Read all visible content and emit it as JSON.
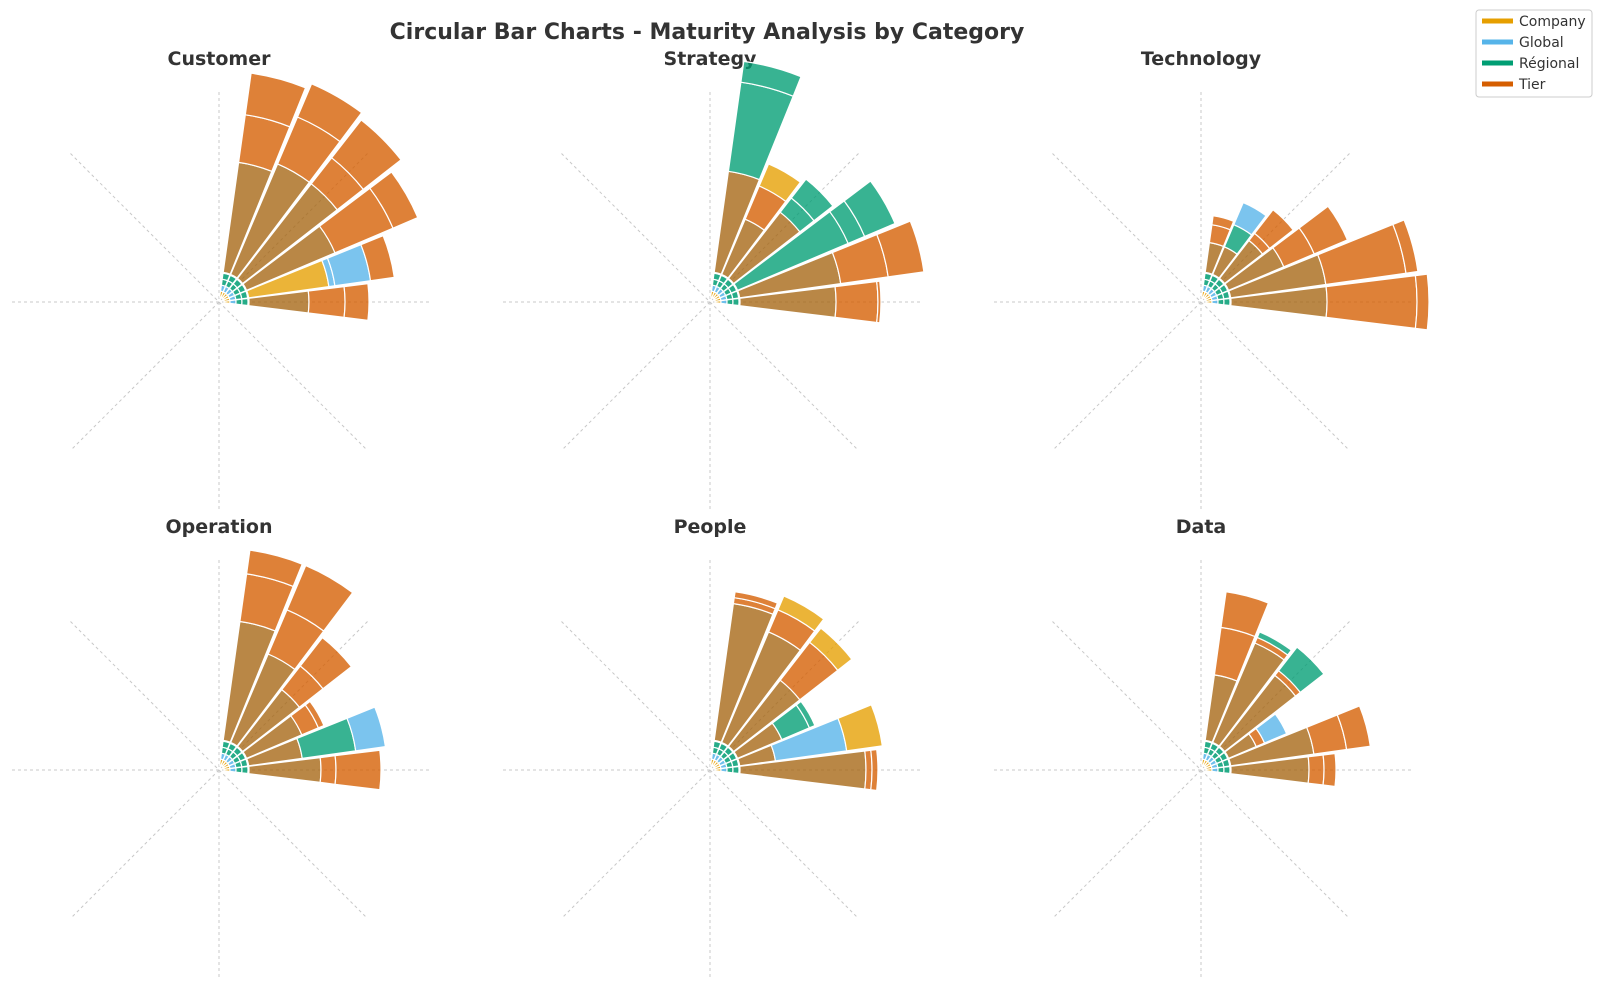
{
  "title": "Circular Bar Charts - Maturity Analysis by Category",
  "legend": [
    {
      "label": "Company",
      "color": "#E69F00"
    },
    {
      "label": "Global",
      "color": "#56B4E9"
    },
    {
      "label": "Régional",
      "color": "#009E73"
    },
    {
      "label": "Tier",
      "color": "#D55E00"
    }
  ],
  "chart_data": [
    {
      "type": "circular-bar",
      "title": "Customer",
      "groups": [
        "Company",
        "Global",
        "Régional",
        "Tier"
      ],
      "bars": [
        {
          "angle": 0,
          "segments": [
            [
              "Tier",
              100
            ],
            [
              "Tier",
              60
            ],
            [
              "Tier",
              40
            ]
          ]
        },
        {
          "angle": 15,
          "segments": [
            [
              "Company",
              135
            ],
            [
              "Global",
              10
            ],
            [
              "Global",
              60
            ],
            [
              "Tier",
              40
            ]
          ]
        },
        {
          "angle": 30,
          "segments": [
            [
              "Tier",
              160
            ],
            [
              "Tier",
              105
            ],
            [
              "Tier",
              45
            ]
          ]
        },
        {
          "angle": 45,
          "segments": [
            [
              "Tier",
              200
            ],
            [
              "Tier",
              55
            ],
            [
              "Tier",
              80
            ]
          ]
        },
        {
          "angle": 60,
          "segments": [
            [
              "Tier",
              200
            ],
            [
              "Tier",
              85
            ],
            [
              "Tier",
              60
            ]
          ]
        },
        {
          "angle": 75,
          "segments": [
            [
              "Tier",
              185
            ],
            [
              "Tier",
              80
            ],
            [
              "Tier",
              70
            ]
          ]
        }
      ]
    },
    {
      "type": "circular-bar",
      "title": "Strategy",
      "groups": [
        "Company",
        "Global",
        "Régional",
        "Tier"
      ],
      "bars": [
        {
          "angle": 0,
          "segments": [
            [
              "Tier",
              160
            ],
            [
              "Tier",
              70
            ],
            [
              "Tier",
              5
            ]
          ]
        },
        {
          "angle": 15,
          "segments": [
            [
              "Tier",
              170
            ],
            [
              "Tier",
              80
            ],
            [
              "Tier",
              60
            ]
          ]
        },
        {
          "angle": 30,
          "segments": [
            [
              "Régional",
              200
            ],
            [
              "Régional",
              30
            ],
            [
              "Régional",
              55
            ]
          ]
        },
        {
          "angle": 45,
          "segments": [
            [
              "Tier",
              140
            ],
            [
              "Régional",
              30
            ],
            [
              "Régional",
              40
            ]
          ]
        },
        {
          "angle": 60,
          "segments": [
            [
              "Tier",
              100
            ],
            [
              "Tier",
              60
            ],
            [
              "Company",
              40
            ]
          ]
        },
        {
          "angle": 75,
          "segments": [
            [
              "Tier",
              170
            ],
            [
              "Régional",
              150
            ],
            [
              "Régional",
              35
            ]
          ]
        }
      ]
    },
    {
      "type": "circular-bar",
      "title": "Technology",
      "groups": [
        "Company",
        "Global",
        "Régional",
        "Tier"
      ],
      "bars": [
        {
          "angle": 0,
          "segments": [
            [
              "Tier",
              160
            ],
            [
              "Tier",
              150
            ],
            [
              "Tier",
              20
            ]
          ]
        },
        {
          "angle": 15,
          "segments": [
            [
              "Tier",
              160
            ],
            [
              "Tier",
              135
            ],
            [
              "Tier",
              20
            ]
          ]
        },
        {
          "angle": 30,
          "segments": [
            [
              "Tier",
              100
            ],
            [
              "Tier",
              55
            ],
            [
              "Tier",
              60
            ]
          ]
        },
        {
          "angle": 45,
          "segments": [
            [
              "Tier",
              80
            ],
            [
              "Tier",
              15
            ],
            [
              "Tier",
              50
            ]
          ]
        },
        {
          "angle": 60,
          "segments": [
            [
              "Tier",
              50
            ],
            [
              "Régional",
              40
            ],
            [
              "Global",
              40
            ]
          ]
        },
        {
          "angle": 75,
          "segments": [
            [
              "Tier",
              50
            ],
            [
              "Tier",
              30
            ],
            [
              "Tier",
              15
            ]
          ]
        }
      ]
    },
    {
      "type": "circular-bar",
      "title": "Operation",
      "groups": [
        "Company",
        "Global",
        "Régional",
        "Tier"
      ],
      "bars": [
        {
          "angle": 0,
          "segments": [
            [
              "Tier",
              120
            ],
            [
              "Tier",
              25
            ],
            [
              "Tier",
              75
            ]
          ]
        },
        {
          "angle": 15,
          "segments": [
            [
              "Tier",
              90
            ],
            [
              "Régional",
              90
            ],
            [
              "Global",
              50
            ]
          ]
        },
        {
          "angle": 30,
          "segments": [
            [
              "Tier",
              100
            ],
            [
              "Tier",
              30
            ],
            [
              "Tier",
              10
            ]
          ]
        },
        {
          "angle": 45,
          "segments": [
            [
              "Tier",
              120
            ],
            [
              "Tier",
              50
            ],
            [
              "Tier",
              60
            ]
          ]
        },
        {
          "angle": 60,
          "segments": [
            [
              "Tier",
              160
            ],
            [
              "Tier",
              80
            ],
            [
              "Tier",
              80
            ]
          ]
        },
        {
          "angle": 75,
          "segments": [
            [
              "Tier",
              200
            ],
            [
              "Tier",
              80
            ],
            [
              "Tier",
              40
            ]
          ]
        }
      ]
    },
    {
      "type": "circular-bar",
      "title": "People",
      "groups": [
        "Company",
        "Global",
        "Régional",
        "Tier"
      ],
      "bars": [
        {
          "angle": 0,
          "segments": [
            [
              "Tier",
              210
            ],
            [
              "Tier",
              10
            ],
            [
              "Tier",
              10
            ]
          ]
        },
        {
          "angle": 15,
          "segments": [
            [
              "Tier",
              60
            ],
            [
              "Global",
              120
            ],
            [
              "Company",
              60
            ]
          ]
        },
        {
          "angle": 30,
          "segments": [
            [
              "Tier",
              80
            ],
            [
              "Régional",
              50
            ],
            [
              "Régional",
              10
            ]
          ]
        },
        {
          "angle": 45,
          "segments": [
            [
              "Tier",
              140
            ],
            [
              "Tier",
              80
            ],
            [
              "Company",
              30
            ]
          ]
        },
        {
          "angle": 60,
          "segments": [
            [
              "Tier",
              200
            ],
            [
              "Tier",
              40
            ],
            [
              "Company",
              25
            ]
          ]
        },
        {
          "angle": 75,
          "segments": [
            [
              "Tier",
              230
            ],
            [
              "Tier",
              10
            ],
            [
              "Tier",
              10
            ]
          ]
        }
      ]
    },
    {
      "type": "circular-bar",
      "title": "Data",
      "groups": [
        "Company",
        "Global",
        "Régional",
        "Tier"
      ],
      "bars": [
        {
          "angle": 0,
          "segments": [
            [
              "Tier",
              130
            ],
            [
              "Tier",
              25
            ],
            [
              "Tier",
              20
            ]
          ]
        },
        {
          "angle": 15,
          "segments": [
            [
              "Tier",
              140
            ],
            [
              "Tier",
              55
            ],
            [
              "Tier",
              40
            ]
          ]
        },
        {
          "angle": 30,
          "segments": [
            [
              "Tier",
              50
            ],
            [
              "Tier",
              15
            ],
            [
              "Global",
              40
            ]
          ]
        },
        {
          "angle": 45,
          "segments": [
            [
              "Tier",
              150
            ],
            [
              "Tier",
              10
            ],
            [
              "Régional",
              50
            ]
          ]
        },
        {
          "angle": 60,
          "segments": [
            [
              "Tier",
              180
            ],
            [
              "Tier",
              10
            ],
            [
              "Régional",
              10
            ]
          ]
        },
        {
          "angle": 75,
          "segments": [
            [
              "Tier",
              110
            ],
            [
              "Tier",
              80
            ],
            [
              "Tier",
              60
            ]
          ]
        }
      ]
    }
  ]
}
